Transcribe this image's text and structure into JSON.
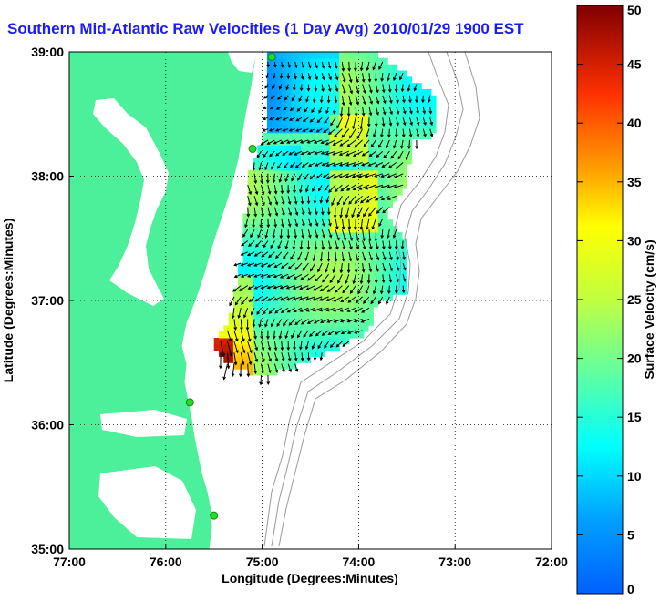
{
  "title": "Southern Mid-Atlantic Raw Velocities (1 Day Avg) 2010/01/29 1900 EST",
  "chart_data": {
    "type": "heatmap",
    "title": "Southern Mid-Atlantic Raw Velocities (1 Day Avg) 2010/01/29 1900 EST",
    "xlabel": "Longitude (Degrees:Minutes)",
    "ylabel": "Latitude (Degrees:Minutes)",
    "xlim": [
      -77,
      -72
    ],
    "ylim": [
      35,
      39
    ],
    "x_ticks": [
      "77:00",
      "76:00",
      "75:00",
      "74:00",
      "73:00",
      "72:00"
    ],
    "y_ticks": [
      "39:00",
      "38:00",
      "37:00",
      "36:00",
      "35:00"
    ],
    "grid": true,
    "colorbar": {
      "label": "Surface Velocity (cm/s)",
      "range": [
        0,
        50
      ],
      "ticks": [
        "50",
        "45",
        "40",
        "35",
        "30",
        "25",
        "20",
        "15",
        "10",
        "5",
        "0"
      ]
    },
    "stations": [
      {
        "lon": -74.9,
        "lat": 38.96
      },
      {
        "lon": -75.1,
        "lat": 38.22
      },
      {
        "lon": -75.75,
        "lat": 36.18
      },
      {
        "lon": -75.5,
        "lat": 35.27
      }
    ]
  },
  "colors": {
    "land": "#4cf09a",
    "title": "#1a1aff",
    "grid": "#000000",
    "bathymetry": "#9a9a9a",
    "station": "#22dd22",
    "vector": "#000000"
  }
}
